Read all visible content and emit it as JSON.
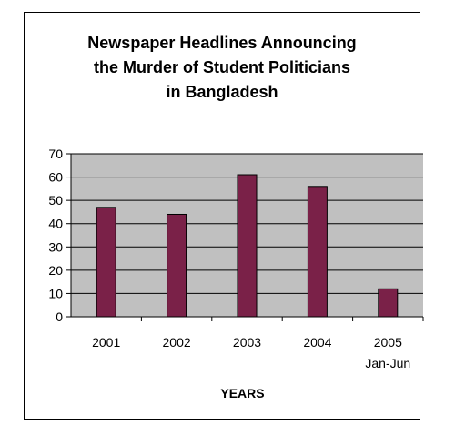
{
  "chart_data": {
    "type": "bar",
    "title_lines": [
      "Newspaper Headlines Announcing",
      "the Murder of Student Politicians",
      "in Bangladesh"
    ],
    "categories": [
      "2001",
      "2002",
      "2003",
      "2004",
      "2005"
    ],
    "category_sublabels": [
      "",
      "",
      "",
      "",
      "Jan-Jun"
    ],
    "values": [
      47,
      44,
      61,
      56,
      12
    ],
    "xlabel": "YEARS",
    "ylabel": "",
    "ylim": [
      0,
      70
    ],
    "yticks": [
      0,
      10,
      20,
      30,
      40,
      50,
      60,
      70
    ],
    "grid": true,
    "legend": "none",
    "colors": {
      "bar": "#7a2148",
      "plot_background": "#c0c0c0",
      "gridline": "#000000"
    }
  }
}
